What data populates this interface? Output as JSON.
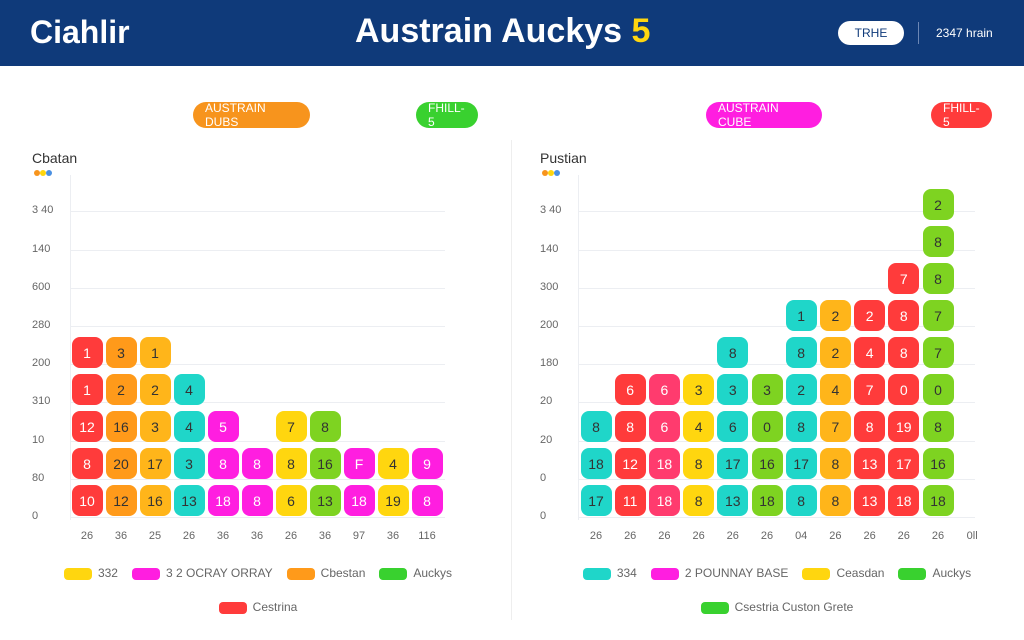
{
  "header": {
    "brand": "Ciahlir",
    "title": "Austrain Auckys",
    "title_badge": "5",
    "button": "TRHE",
    "user": "2347 hrain"
  },
  "panels": [
    {
      "badges": [
        {
          "label": "AUSTRAIN DUBS",
          "color": "#f7941d"
        },
        {
          "label": "FHILL-5",
          "color": "#39d12f"
        }
      ],
      "title": "Cbatan",
      "y_labels": [
        "0",
        "80",
        "10",
        "310",
        "200",
        "280",
        "600",
        "140",
        "3 40"
      ],
      "x_labels": [
        "26",
        "36",
        "25",
        "26",
        "36",
        "36",
        "26",
        "36",
        "97",
        "36",
        "116"
      ],
      "columns": [
        {
          "color": "#ff3b3b",
          "tiles": [
            "10",
            "8",
            "12",
            "1",
            "1"
          ]
        },
        {
          "color": "#ff9a1a",
          "tiles": [
            "12",
            "20",
            "16",
            "2",
            "3"
          ]
        },
        {
          "color": "#ffb51a",
          "tiles": [
            "16",
            "17",
            "3",
            "2",
            "1"
          ]
        },
        {
          "color": "#1fd6c9",
          "tiles": [
            "13",
            "3",
            "4",
            "4"
          ]
        },
        {
          "color": "#ff1ee0",
          "tiles": [
            "18",
            "8",
            "5"
          ]
        },
        {
          "color": "#ff1ee0",
          "tiles": [
            "8",
            "8"
          ]
        },
        {
          "color": "#ffd60f",
          "tiles": [
            "6",
            "8",
            "7"
          ]
        },
        {
          "color": "#7ed321",
          "tiles": [
            "13",
            "16",
            "8"
          ]
        },
        {
          "color": "#ff1ee0",
          "tiles": [
            "18",
            "F"
          ]
        },
        {
          "color": "#ffd60f",
          "tiles": [
            "19",
            "4"
          ]
        },
        {
          "color": "#ff1ee0",
          "tiles": [
            "8",
            "9"
          ]
        }
      ],
      "legend": [
        [
          {
            "label": "332",
            "color": "#ffd60f"
          },
          {
            "label": "3 2 OCRAY ORRAY",
            "color": "#ff1ee0"
          },
          {
            "label": "Cbestan",
            "color": "#ff9a1a"
          },
          {
            "label": "Auckys",
            "color": "#39d12f"
          }
        ],
        [
          {
            "label": "Cestrina",
            "color": "#ff3b3b"
          }
        ]
      ]
    },
    {
      "badges": [
        {
          "label": "AUSTRAIN CUBE",
          "color": "#ff1ee0"
        },
        {
          "label": "FHILL-5",
          "color": "#ff3b3b"
        }
      ],
      "title": "Pustian",
      "y_labels": [
        "0",
        "0",
        "20",
        "20",
        "180",
        "200",
        "300",
        "140",
        "3 40"
      ],
      "x_labels": [
        "26",
        "26",
        "26",
        "26",
        "26",
        "26",
        "04",
        "26",
        "26",
        "26",
        "26",
        "0ll"
      ],
      "columns": [
        {
          "color": "#1fd6c9",
          "tiles": [
            "17",
            "18",
            "8"
          ]
        },
        {
          "color": "#ff3b3b",
          "tiles": [
            "11",
            "12",
            "8",
            "6"
          ]
        },
        {
          "color": "#ff3b6e",
          "tiles": [
            "18",
            "18",
            "6",
            "6"
          ]
        },
        {
          "color": "#ffd60f",
          "tiles": [
            "8",
            "8",
            "4",
            "3"
          ]
        },
        {
          "color": "#1fd6c9",
          "tiles": [
            "13",
            "17",
            "6",
            "3",
            "8"
          ]
        },
        {
          "color": "#7ed321",
          "tiles": [
            "18",
            "16",
            "0",
            "3"
          ]
        },
        {
          "color": "#1fd6c9",
          "tiles": [
            "8",
            "17",
            "8",
            "2",
            "8",
            "1"
          ]
        },
        {
          "color": "#ffb51a",
          "tiles": [
            "8",
            "8",
            "7",
            "4",
            "2",
            "2"
          ]
        },
        {
          "color": "#ff3b3b",
          "tiles": [
            "13",
            "13",
            "8",
            "7",
            "4",
            "2"
          ]
        },
        {
          "color": "#ff3b3b",
          "tiles": [
            "18",
            "17",
            "19",
            "0",
            "8",
            "8",
            "7"
          ]
        },
        {
          "color": "#7ed321",
          "tiles": [
            "18",
            "16",
            "8",
            "0",
            "7",
            "7",
            "8",
            "8",
            "2"
          ]
        }
      ],
      "legend": [
        [
          {
            "label": "334",
            "color": "#1fd6c9"
          },
          {
            "label": "2 POUNNAY BASE",
            "color": "#ff1ee0"
          },
          {
            "label": "Ceasdan",
            "color": "#ffd60f"
          },
          {
            "label": "Auckys",
            "color": "#39d12f"
          }
        ],
        [
          {
            "label": "Csestria Custon Grete",
            "color": "#39d12f"
          }
        ]
      ]
    }
  ]
}
